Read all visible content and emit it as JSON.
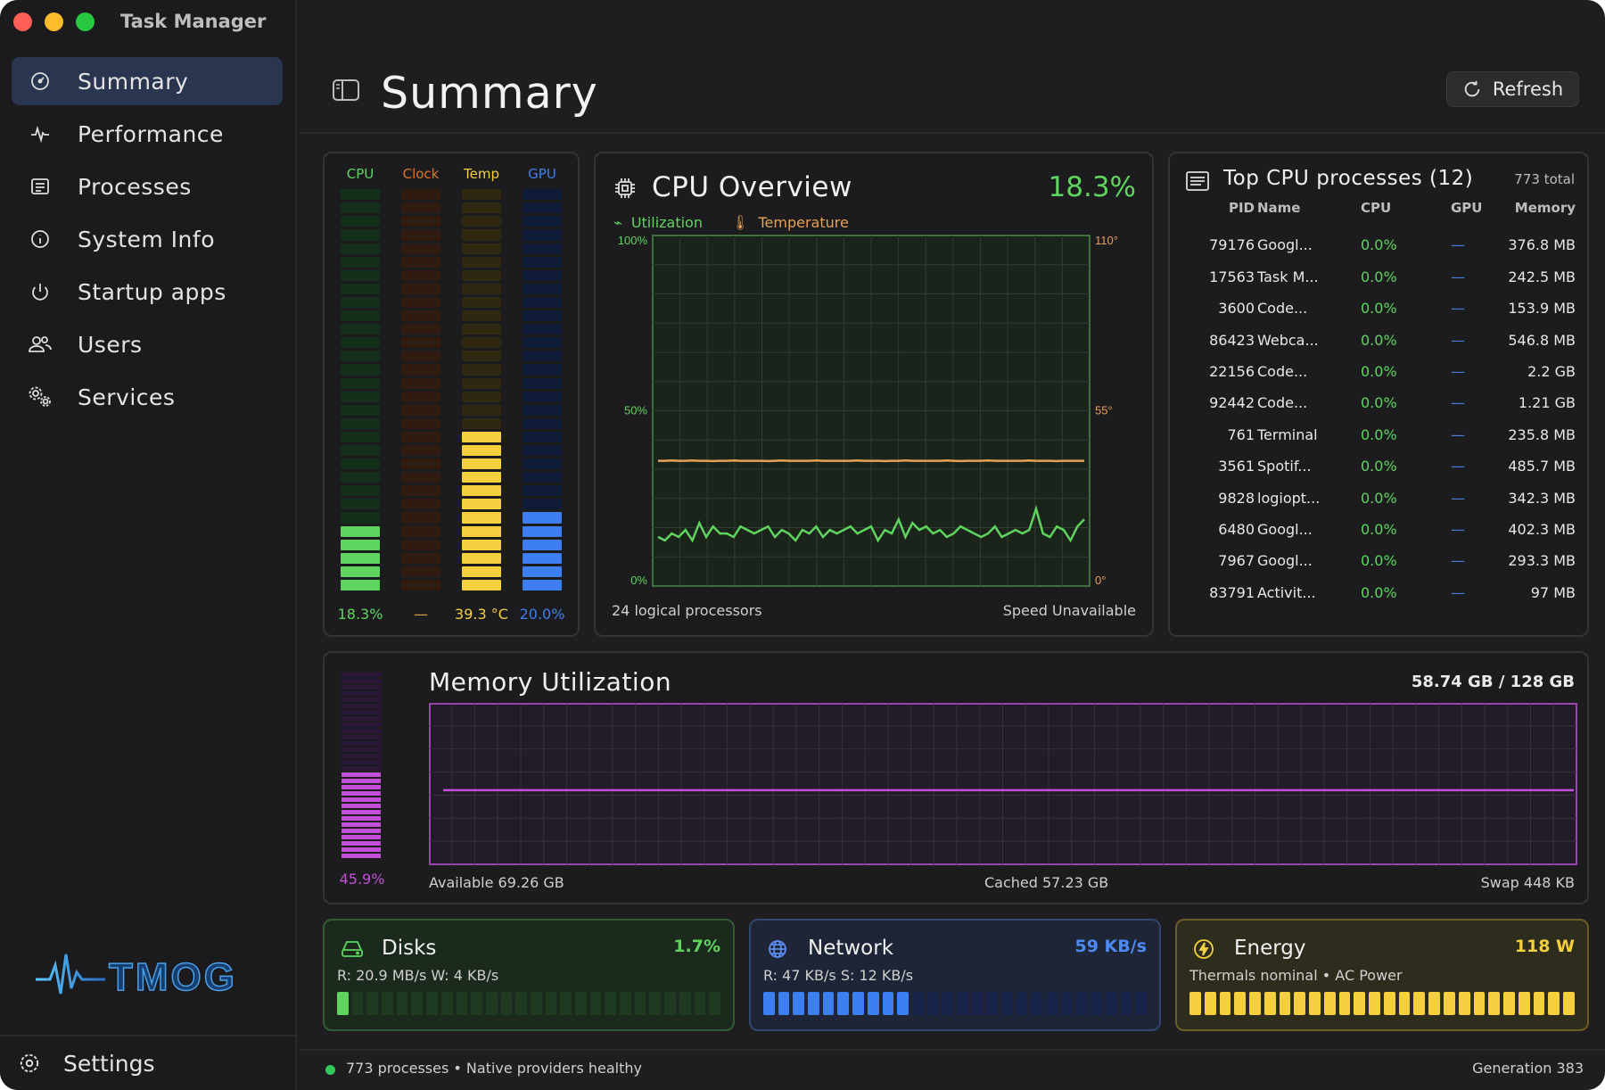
{
  "app": {
    "title": "Task Manager"
  },
  "sidebar": {
    "items": [
      {
        "label": "Summary",
        "icon": "gauge-icon",
        "active": true
      },
      {
        "label": "Performance",
        "icon": "pulse-icon"
      },
      {
        "label": "Processes",
        "icon": "list-icon"
      },
      {
        "label": "System Info",
        "icon": "info-icon"
      },
      {
        "label": "Startup apps",
        "icon": "power-icon"
      },
      {
        "label": "Users",
        "icon": "users-icon"
      },
      {
        "label": "Services",
        "icon": "gears-icon"
      }
    ],
    "logo_text": "TMOG",
    "settings_label": "Settings"
  },
  "header": {
    "title": "Summary",
    "refresh_label": "Refresh"
  },
  "meters": [
    {
      "label": "CPU",
      "value": "18.3%",
      "fraction": 0.183,
      "color": "#5fd45f",
      "dim": "#15301a"
    },
    {
      "label": "Clock",
      "value": "—",
      "fraction": 0,
      "color": "#e0732a",
      "dim": "#2f1b0f"
    },
    {
      "label": "Temp",
      "value": "39.3 °C",
      "fraction": 0.393,
      "color": "#f4d03f",
      "dim": "#2e2810"
    },
    {
      "label": "GPU",
      "value": "20.0%",
      "fraction": 0.2,
      "color": "#3d7ff0",
      "dim": "#0f1a36"
    }
  ],
  "cpu_overview": {
    "title": "CPU Overview",
    "percent": "18.3%",
    "legend_util": "Utilization",
    "legend_temp": "Temperature",
    "y_left": [
      "100%",
      "50%",
      "0%"
    ],
    "y_right": [
      "110°",
      "55°",
      "0°"
    ],
    "processors": "24 logical processors",
    "speed": "Speed Unavailable",
    "chart_data": {
      "type": "line",
      "series": [
        {
          "name": "Utilization",
          "color": "#5fd45f",
          "values": [
            14,
            13,
            15,
            14,
            16,
            13,
            18,
            14,
            17,
            15,
            15,
            14,
            17,
            16,
            15,
            16,
            17,
            14,
            16,
            15,
            13,
            16,
            15,
            17,
            14,
            16,
            15,
            16,
            17,
            15,
            16,
            17,
            13,
            16,
            15,
            19,
            14,
            18,
            16,
            17,
            15,
            16,
            14,
            15,
            17,
            16,
            15,
            14,
            15,
            17,
            14,
            15,
            16,
            15,
            16,
            22,
            15,
            14,
            17,
            16,
            13,
            17,
            19
          ]
        },
        {
          "name": "Temperature",
          "color": "#e8a055",
          "values": [
            39.3,
            39.3,
            39.4,
            39.3,
            39.3,
            39.4,
            39.3,
            39.3,
            39.2,
            39.3,
            39.3,
            39.4,
            39.3,
            39.3,
            39.3,
            39.3,
            39.2,
            39.3,
            39.4,
            39.3,
            39.3,
            39.3,
            39.3,
            39.4,
            39.3,
            39.3,
            39.3,
            39.3,
            39.3,
            39.4,
            39.3,
            39.3,
            39.3,
            39.2,
            39.3,
            39.3,
            39.4,
            39.3,
            39.3,
            39.3,
            39.3,
            39.3,
            39.4,
            39.3,
            39.2,
            39.3,
            39.3,
            39.3,
            39.4,
            39.3,
            39.3,
            39.3,
            39.3,
            39.3,
            39.4,
            39.3,
            39.3,
            39.3,
            39.2,
            39.3,
            39.3,
            39.3,
            39.3
          ]
        }
      ],
      "ylim_left": [
        0,
        100
      ],
      "ylim_right": [
        0,
        110
      ],
      "grid": true
    }
  },
  "processes": {
    "title": "Top CPU processes (12)",
    "total": "773 total",
    "columns": [
      "PID",
      "Name",
      "CPU",
      "GPU",
      "Memory"
    ],
    "rows": [
      {
        "pid": "79176",
        "name": "Googl...",
        "cpu": "0.0%",
        "gpu": "—",
        "mem": "376.8 MB"
      },
      {
        "pid": "17563",
        "name": "Task M...",
        "cpu": "0.0%",
        "gpu": "—",
        "mem": "242.5 MB"
      },
      {
        "pid": "3600",
        "name": "Code...",
        "cpu": "0.0%",
        "gpu": "—",
        "mem": "153.9 MB"
      },
      {
        "pid": "86423",
        "name": "Webca...",
        "cpu": "0.0%",
        "gpu": "—",
        "mem": "546.8 MB"
      },
      {
        "pid": "22156",
        "name": "Code...",
        "cpu": "0.0%",
        "gpu": "—",
        "mem": "2.2 GB"
      },
      {
        "pid": "92442",
        "name": "Code...",
        "cpu": "0.0%",
        "gpu": "—",
        "mem": "1.21 GB"
      },
      {
        "pid": "761",
        "name": "Terminal",
        "cpu": "0.0%",
        "gpu": "—",
        "mem": "235.8 MB"
      },
      {
        "pid": "3561",
        "name": "Spotif...",
        "cpu": "0.0%",
        "gpu": "—",
        "mem": "485.7 MB"
      },
      {
        "pid": "9828",
        "name": "logiopt...",
        "cpu": "0.0%",
        "gpu": "—",
        "mem": "342.3 MB"
      },
      {
        "pid": "6480",
        "name": "Googl...",
        "cpu": "0.0%",
        "gpu": "—",
        "mem": "402.3 MB"
      },
      {
        "pid": "7967",
        "name": "Googl...",
        "cpu": "0.0%",
        "gpu": "—",
        "mem": "293.3 MB"
      },
      {
        "pid": "83791",
        "name": "Activit...",
        "cpu": "0.0%",
        "gpu": "—",
        "mem": "97 MB"
      }
    ]
  },
  "memory": {
    "title": "Memory Utilization",
    "used": "58.74 GB / 128 GB",
    "percent": "45.9%",
    "fraction": 0.459,
    "available": "Available 69.26 GB",
    "cached": "Cached 57.23 GB",
    "swap": "Swap 448 KB",
    "color": "#c24fd8",
    "chart_data": {
      "type": "line",
      "series": [
        {
          "values": [
            45.9,
            45.9
          ]
        }
      ],
      "ylim": [
        0,
        100
      ]
    }
  },
  "disks": {
    "title": "Disks",
    "value": "1.7%",
    "sub": "R: 20.9 MB/s  W: 4 KB/s",
    "fraction": 0.017,
    "color": "#5fd45f",
    "dim": "#1e3a20"
  },
  "network": {
    "title": "Network",
    "value": "59 KB/s",
    "sub": "R: 47 KB/s  S: 12 KB/s",
    "fraction": 0.4,
    "color": "#3d7ff0",
    "dim": "#18244a"
  },
  "energy": {
    "title": "Energy",
    "value": "118 W",
    "sub": "Thermals nominal • AC Power",
    "fraction": 1.0,
    "color": "#f4d03f",
    "dim": "#3a3414"
  },
  "status": {
    "text": "773 processes • Native providers healthy",
    "generation": "Generation 383"
  }
}
